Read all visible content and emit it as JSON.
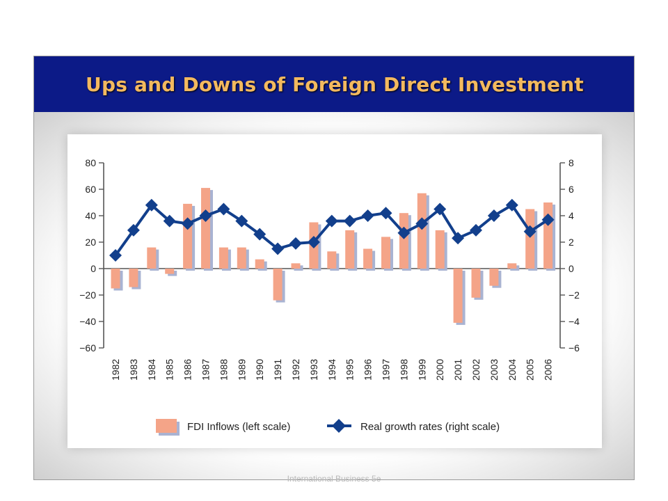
{
  "slide": {
    "title": "Ups and Downs of Foreign Direct Investment",
    "footer": "International Business 5e"
  },
  "colors": {
    "title_bar": "#0c1a87",
    "title_text": "#f3b95f",
    "bar_fill": "#f4a488",
    "bar_shadow": "#a9b3d2",
    "line": "#123f8c"
  },
  "chart_data": {
    "type": "bar+line",
    "categories": [
      "1982",
      "1983",
      "1984",
      "1985",
      "1986",
      "1987",
      "1988",
      "1989",
      "1990",
      "1991",
      "1992",
      "1993",
      "1994",
      "1995",
      "1996",
      "1997",
      "1998",
      "1999",
      "2000",
      "2001",
      "2002",
      "2003",
      "2004",
      "2005",
      "2006"
    ],
    "series": [
      {
        "name": "FDI Inflows (left scale)",
        "type": "bar",
        "axis": "left",
        "values": [
          -15,
          -14,
          16,
          -4,
          49,
          61,
          16,
          16,
          7,
          -24,
          4,
          35,
          13,
          29,
          15,
          24,
          42,
          57,
          29,
          -41,
          -22,
          -13,
          4,
          45,
          50
        ]
      },
      {
        "name": "Real growth rates (right scale)",
        "type": "line",
        "axis": "right",
        "values": [
          1.0,
          2.9,
          4.8,
          3.6,
          3.4,
          4.0,
          4.5,
          3.6,
          2.6,
          1.5,
          1.9,
          2.0,
          3.6,
          3.6,
          4.0,
          4.2,
          2.7,
          3.4,
          4.5,
          2.3,
          2.9,
          4.0,
          4.8,
          2.8,
          3.7
        ]
      }
    ],
    "y_left": {
      "min": -60,
      "max": 80,
      "ticks": [
        "80",
        "60",
        "40",
        "20",
        "0",
        "−20",
        "−40",
        "−60"
      ]
    },
    "y_right": {
      "min": -6,
      "max": 8,
      "ticks": [
        "8",
        "6",
        "4",
        "2",
        "0",
        "−2",
        "−4",
        "−6"
      ]
    },
    "legend": {
      "bar_label": "FDI Inflows (left scale)",
      "line_label": "Real growth rates (right scale)",
      "position": "bottom"
    },
    "grid": false
  }
}
